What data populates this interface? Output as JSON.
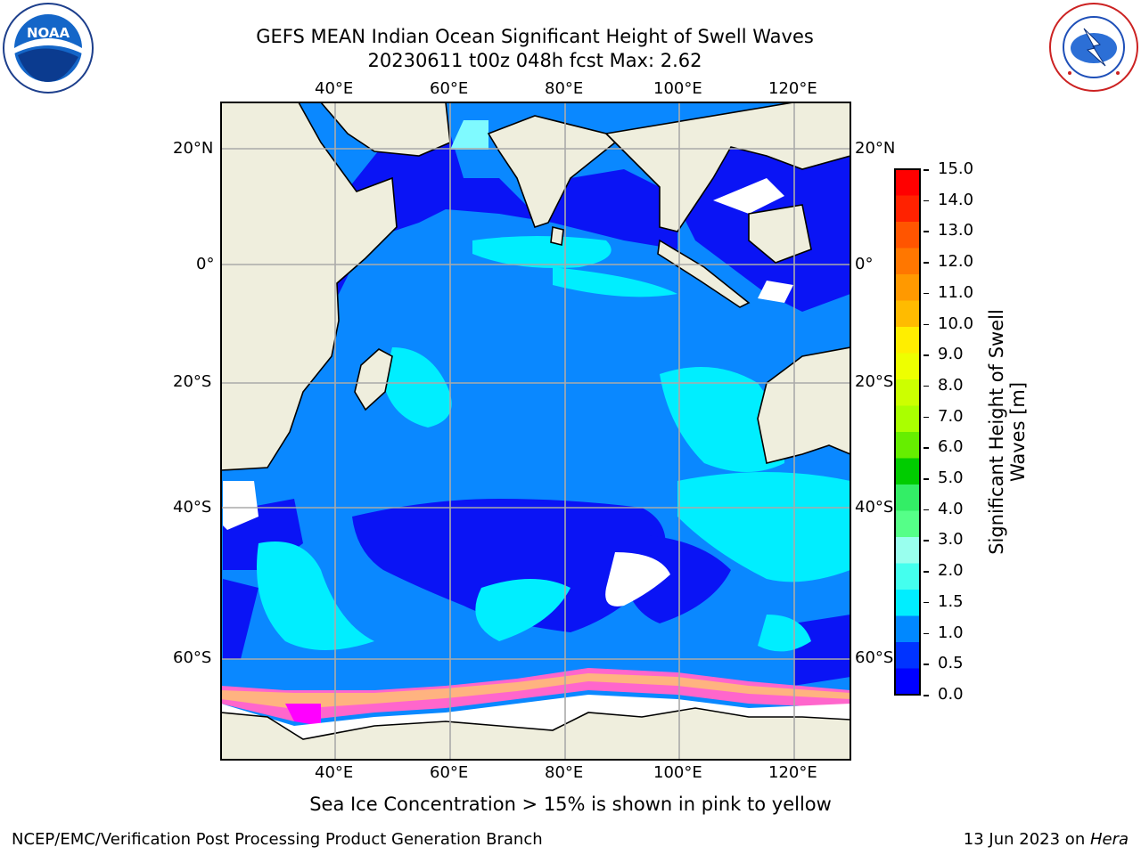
{
  "header": {
    "title_line1": "GEFS MEAN Indian Ocean Significant Height of Swell Waves",
    "title_line2": "20230611 t00z 048h fcst   Max: 2.62"
  },
  "logos": {
    "left": {
      "text": "NOAA",
      "ring_text": "NATIONAL OCEANIC AND ATMOSPHERIC ADMINISTRATION · U.S. DEPARTMENT OF COMMERCE"
    },
    "right": {
      "ring_text": "NATIONAL WEATHER SERVICE"
    }
  },
  "map": {
    "lon_ticks": [
      "40°E",
      "60°E",
      "80°E",
      "100°E",
      "120°E"
    ],
    "lat_ticks": [
      "20°N",
      "0°",
      "20°S",
      "40°S",
      "60°S"
    ],
    "land_color": "#efeedd",
    "ice_colors": [
      "#ff00ff",
      "#ff66cc",
      "#ffb380",
      "#ffdd55"
    ]
  },
  "colorbar": {
    "label_line1": "Significant Height of Swell",
    "label_line2": "Waves [m]",
    "ticks": [
      "15.0",
      "14.0",
      "13.0",
      "12.0",
      "11.0",
      "10.0",
      "9.0",
      "8.0",
      "7.0",
      "6.0",
      "5.0",
      "4.0",
      "3.0",
      "2.0",
      "1.5",
      "1.0",
      "0.5",
      "0.0"
    ],
    "colors_top_to_bottom": [
      "#ff0000",
      "#ff2200",
      "#ff5500",
      "#ff7700",
      "#ff9900",
      "#ffbb00",
      "#ffee00",
      "#eeff00",
      "#ccff00",
      "#aaff00",
      "#66ee00",
      "#00cc00",
      "#33ee66",
      "#55ff88",
      "#99ffee",
      "#44ffee",
      "#00eeff",
      "#0088ff",
      "#0033ff",
      "#0000ff"
    ]
  },
  "footer": {
    "note": "Sea Ice Concentration > 15% is shown in pink to yellow",
    "left": "NCEP/EMC/Verification Post Processing Product Generation Branch",
    "right_prefix": "13 Jun 2023 on ",
    "right_italic": "Hera"
  }
}
